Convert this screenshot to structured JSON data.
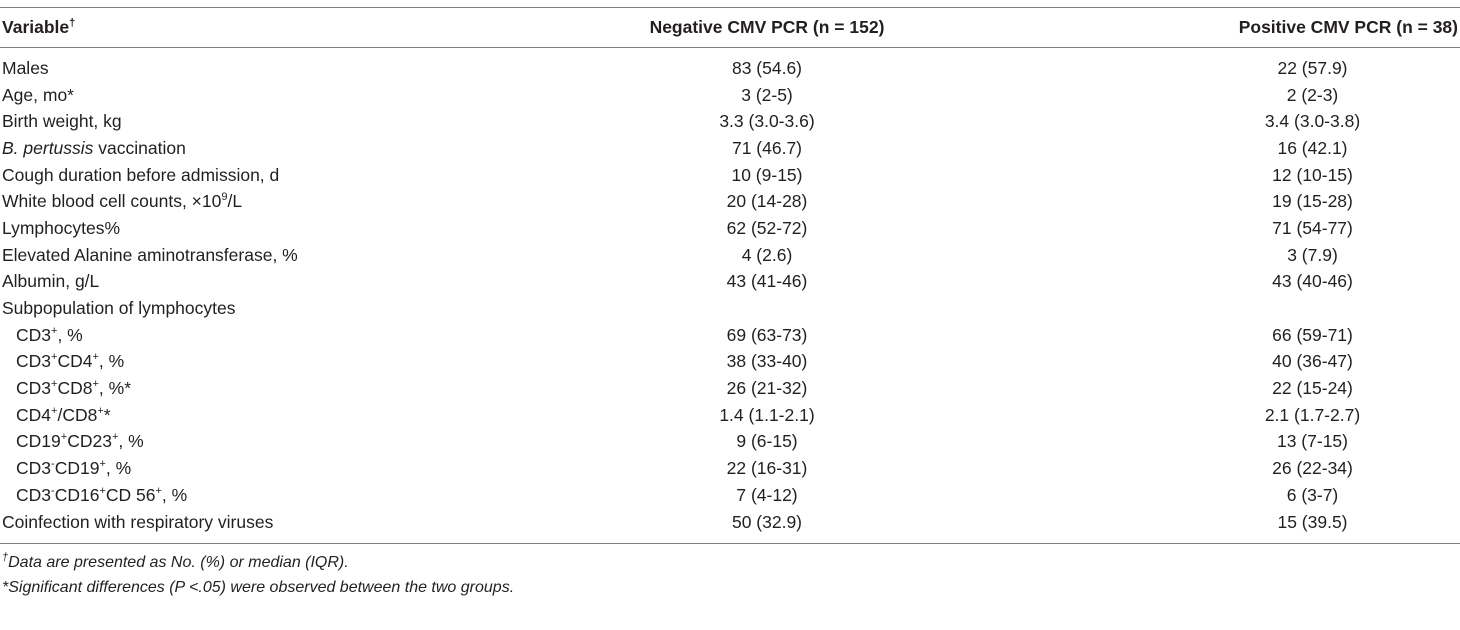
{
  "table": {
    "headers": {
      "variable": "Variable",
      "variable_sup": "†",
      "negative": "Negative CMV PCR (n = 152)",
      "positive": "Positive CMV PCR (n = 38)"
    },
    "rows": [
      {
        "label": "Males",
        "neg": "83 (54.6)",
        "pos": "22 (57.9)"
      },
      {
        "label": "Age, mo*",
        "neg": "3 (2-5)",
        "pos": "2 (2-3)"
      },
      {
        "label": "Birth weight, kg",
        "neg": "3.3 (3.0-3.6)",
        "pos": "3.4 (3.0-3.8)"
      },
      {
        "label_italic": "B. pertussis",
        "label_rest": " vaccination",
        "neg": "71 (46.7)",
        "pos": "16 (42.1)"
      },
      {
        "label": "Cough duration before admission, d",
        "neg": "10 (9-15)",
        "pos": "12 (10-15)"
      },
      {
        "label_pre": "White blood cell counts, ×10",
        "label_sup": "9",
        "label_post": "/L",
        "neg": "20 (14-28)",
        "pos": "19 (15-28)"
      },
      {
        "label": "Lymphocytes%",
        "neg": "62 (52-72)",
        "pos": "71 (54-77)"
      },
      {
        "label": "Elevated Alanine aminotransferase, %",
        "neg": "4 (2.6)",
        "pos": "3 (7.9)"
      },
      {
        "label": "Albumin, g/L",
        "neg": "43 (41-46)",
        "pos": "43 (40-46)"
      },
      {
        "label": "Subpopulation of lymphocytes",
        "neg": "",
        "pos": ""
      },
      {
        "sub": true,
        "parts": [
          "CD3",
          "+",
          ", %"
        ],
        "neg": "69 (63-73)",
        "pos": "66 (59-71)"
      },
      {
        "sub": true,
        "parts": [
          "CD3",
          "+",
          "CD4",
          "+",
          ", %"
        ],
        "neg": "38 (33-40)",
        "pos": "40 (36-47)"
      },
      {
        "sub": true,
        "parts": [
          "CD3",
          "+",
          "CD8",
          "+",
          ", %*"
        ],
        "neg": "26 (21-32)",
        "pos": "22 (15-24)"
      },
      {
        "sub": true,
        "parts": [
          "CD4",
          "+",
          "/CD8",
          "+",
          "*"
        ],
        "neg": "1.4 (1.1-2.1)",
        "pos": "2.1 (1.7-2.7)"
      },
      {
        "sub": true,
        "parts": [
          "CD19",
          "+",
          "CD23",
          "+",
          ", %"
        ],
        "neg": "9 (6-15)",
        "pos": "13 (7-15)"
      },
      {
        "sub": true,
        "parts": [
          "CD3",
          "-",
          "CD19",
          "+",
          ", %"
        ],
        "neg": "22 (16-31)",
        "pos": "26 (22-34)"
      },
      {
        "sub": true,
        "parts": [
          "CD3",
          "-",
          "CD16",
          "+",
          "CD 56",
          "+",
          ", %"
        ],
        "neg": "7 (4-12)",
        "pos": "6 (3-7)"
      },
      {
        "label": "Coinfection with respiratory viruses",
        "neg": "50 (32.9)",
        "pos": "15 (39.5)"
      }
    ],
    "footnotes": {
      "dagger_sup": "†",
      "dagger_text": "Data are presented as No. (%) or median (IQR).",
      "star_text": "*Significant differences (P <.05) were observed between the two groups."
    }
  }
}
